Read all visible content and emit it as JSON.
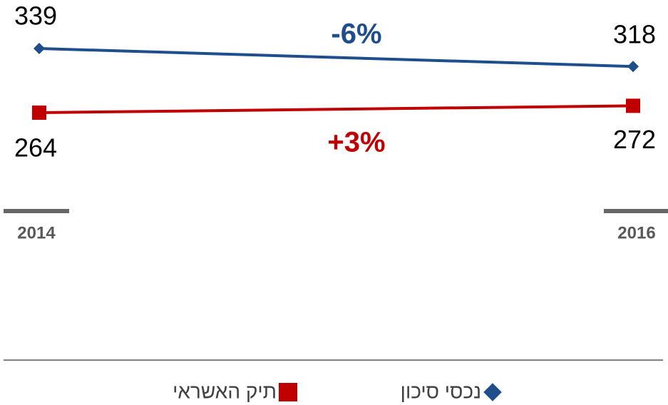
{
  "chart_data": {
    "type": "line",
    "categories": [
      "2014",
      "2016"
    ],
    "series": [
      {
        "name": "נכסי סיכון",
        "color": "#1f4e8c",
        "marker": "diamond",
        "values": [
          339,
          318
        ]
      },
      {
        "name": "תיק האשראי",
        "color": "#c00000",
        "marker": "square",
        "values": [
          264,
          272
        ]
      }
    ],
    "annotations": [
      "-6%",
      "+3%"
    ],
    "legend": "bottom"
  }
}
